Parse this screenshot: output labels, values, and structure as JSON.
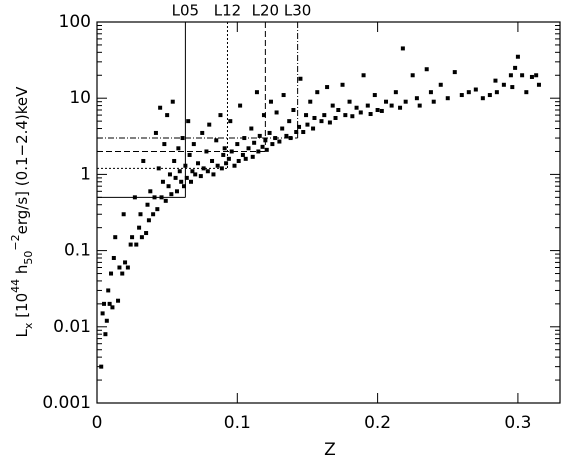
{
  "chart_data": {
    "type": "scatter",
    "log_y": true,
    "grid": false,
    "color": "#000000",
    "xlabel": "Z",
    "ylabel": [
      {
        "text": "L"
      },
      {
        "text": "x",
        "shift": "sub"
      },
      {
        "text": " [10"
      },
      {
        "text": "44",
        "shift": "super"
      },
      {
        "text": " h"
      },
      {
        "text": "50",
        "shift": "sub"
      },
      {
        "text": "−2",
        "shift": "super"
      },
      {
        "text": "erg/s] (0.1−2.4)keV"
      }
    ],
    "xlim": [
      0,
      0.33
    ],
    "xticks": [
      0,
      0.1,
      0.2,
      0.3
    ],
    "ylim": [
      0.001,
      100
    ],
    "yticks": [
      0.001,
      0.01,
      0.1,
      1,
      10,
      100
    ],
    "thresholds": [
      {
        "label": "L05",
        "x": 0.063,
        "y": 0.5,
        "dash": "solid"
      },
      {
        "label": "L12",
        "x": 0.093,
        "y": 1.2,
        "dash": "dotted"
      },
      {
        "label": "L20",
        "x": 0.12,
        "y": 2,
        "dash": "dashed"
      },
      {
        "label": "L30",
        "x": 0.143,
        "y": 3,
        "dash": "dashdot"
      }
    ],
    "x": [
      0.003,
      0.004,
      0.005,
      0.006,
      0.007,
      0.008,
      0.009,
      0.01,
      0.011,
      0.012,
      0.013,
      0.015,
      0.016,
      0.018,
      0.019,
      0.02,
      0.022,
      0.024,
      0.025,
      0.027,
      0.028,
      0.03,
      0.031,
      0.032,
      0.033,
      0.035,
      0.036,
      0.037,
      0.038,
      0.04,
      0.041,
      0.042,
      0.043,
      0.044,
      0.045,
      0.046,
      0.047,
      0.048,
      0.049,
      0.05,
      0.051,
      0.052,
      0.053,
      0.054,
      0.055,
      0.056,
      0.057,
      0.058,
      0.059,
      0.06,
      0.061,
      0.062,
      0.063,
      0.064,
      0.065,
      0.066,
      0.067,
      0.068,
      0.069,
      0.07,
      0.072,
      0.074,
      0.075,
      0.076,
      0.078,
      0.079,
      0.08,
      0.082,
      0.083,
      0.085,
      0.086,
      0.088,
      0.089,
      0.09,
      0.091,
      0.092,
      0.094,
      0.095,
      0.096,
      0.098,
      0.1,
      0.101,
      0.102,
      0.104,
      0.105,
      0.106,
      0.108,
      0.11,
      0.111,
      0.112,
      0.114,
      0.115,
      0.116,
      0.118,
      0.119,
      0.12,
      0.121,
      0.123,
      0.124,
      0.125,
      0.127,
      0.128,
      0.13,
      0.132,
      0.133,
      0.135,
      0.137,
      0.138,
      0.14,
      0.142,
      0.144,
      0.145,
      0.147,
      0.149,
      0.15,
      0.152,
      0.154,
      0.155,
      0.157,
      0.16,
      0.162,
      0.164,
      0.166,
      0.168,
      0.17,
      0.172,
      0.175,
      0.177,
      0.18,
      0.182,
      0.185,
      0.188,
      0.19,
      0.193,
      0.195,
      0.198,
      0.2,
      0.203,
      0.206,
      0.21,
      0.213,
      0.216,
      0.218,
      0.22,
      0.225,
      0.228,
      0.23,
      0.235,
      0.238,
      0.24,
      0.245,
      0.25,
      0.255,
      0.26,
      0.265,
      0.27,
      0.275,
      0.28,
      0.285,
      0.29,
      0.295,
      0.298,
      0.3,
      0.303,
      0.306,
      0.31,
      0.313,
      0.315,
      0.296,
      0.284
    ],
    "values": [
      0.003,
      0.015,
      0.02,
      0.008,
      0.012,
      0.03,
      0.02,
      0.05,
      0.018,
      0.08,
      0.15,
      0.022,
      0.06,
      0.05,
      0.3,
      0.07,
      0.06,
      0.12,
      0.15,
      0.5,
      0.12,
      0.2,
      0.3,
      0.15,
      1.5,
      0.17,
      0.4,
      0.25,
      0.6,
      0.3,
      0.5,
      3.5,
      0.35,
      1.2,
      7.5,
      0.5,
      0.8,
      2.5,
      0.45,
      6,
      0.7,
      1.0,
      0.55,
      9,
      1.5,
      0.9,
      0.6,
      2.2,
      1.1,
      0.8,
      3,
      0.7,
      1.3,
      0.9,
      5,
      1.8,
      0.8,
      1.1,
      2.5,
      1.0,
      1.4,
      0.95,
      3.5,
      1.2,
      2,
      1.1,
      4.5,
      1.5,
      1.0,
      2.8,
      1.3,
      6,
      1.2,
      1.8,
      2.2,
      1.4,
      1.6,
      5,
      2,
      1.3,
      2.5,
      1.5,
      8,
      1.8,
      3,
      1.6,
      2.2,
      4,
      1.7,
      2.6,
      12,
      2.0,
      3.2,
      2.3,
      6,
      2.8,
      2.1,
      3.5,
      9,
      2.5,
      3,
      6.5,
      2.7,
      4,
      11,
      3.2,
      5,
      3.0,
      7,
      3.6,
      4.2,
      18,
      3.6,
      6,
      4.5,
      9,
      4,
      5.5,
      12,
      5,
      6,
      14,
      4.8,
      8,
      5.5,
      7,
      15,
      6,
      9,
      5.8,
      7.5,
      6.5,
      20,
      8,
      6.2,
      11,
      7,
      6.8,
      9,
      8,
      12,
      7.5,
      45,
      9,
      20,
      10,
      8,
      24,
      12,
      9,
      15,
      10,
      22,
      11,
      12,
      13,
      10,
      11,
      12,
      15,
      20,
      25,
      35,
      20,
      12,
      19,
      20,
      15,
      14,
      17
    ]
  }
}
